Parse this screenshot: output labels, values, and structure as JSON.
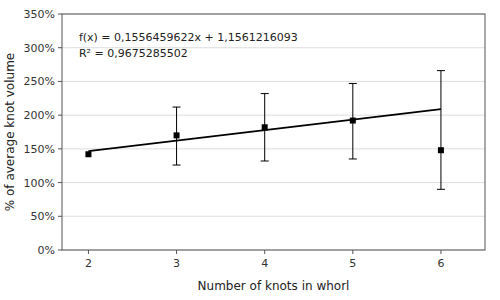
{
  "chart_data": {
    "type": "scatter",
    "xlabel": "Number of knots in whorl",
    "ylabel": "% of average knot volume",
    "annotations": [
      "f(x) = 0,1556459622x + 1,1561216093",
      "R² = 0,9675285502"
    ],
    "xlim": [
      1.7,
      6.5
    ],
    "ylim": [
      0.0,
      3.5
    ],
    "xticks": [
      2,
      3,
      4,
      5,
      6
    ],
    "yticks": [
      {
        "value": 0.0,
        "label": "0%"
      },
      {
        "value": 0.5,
        "label": "50%"
      },
      {
        "value": 1.0,
        "label": "100%"
      },
      {
        "value": 1.5,
        "label": "150%"
      },
      {
        "value": 2.0,
        "label": "200%"
      },
      {
        "value": 2.5,
        "label": "250%"
      },
      {
        "value": 3.0,
        "label": "300%"
      },
      {
        "value": 3.5,
        "label": "350%"
      }
    ],
    "grid": true,
    "series": [
      {
        "type": "scatter",
        "marker": "square",
        "color": "#000000",
        "x": [
          2,
          3,
          4,
          5,
          6
        ],
        "values": [
          1.42,
          1.7,
          1.82,
          1.92,
          1.48
        ],
        "error_upper": [
          0.0,
          0.42,
          0.5,
          0.55,
          1.18
        ],
        "error_lower": [
          0.0,
          0.44,
          0.5,
          0.57,
          0.58
        ]
      },
      {
        "type": "line",
        "line_style": "solid",
        "color": "#000000",
        "x": [
          2,
          6
        ],
        "values": [
          1.4674135337,
          2.0899973825
        ]
      }
    ]
  }
}
